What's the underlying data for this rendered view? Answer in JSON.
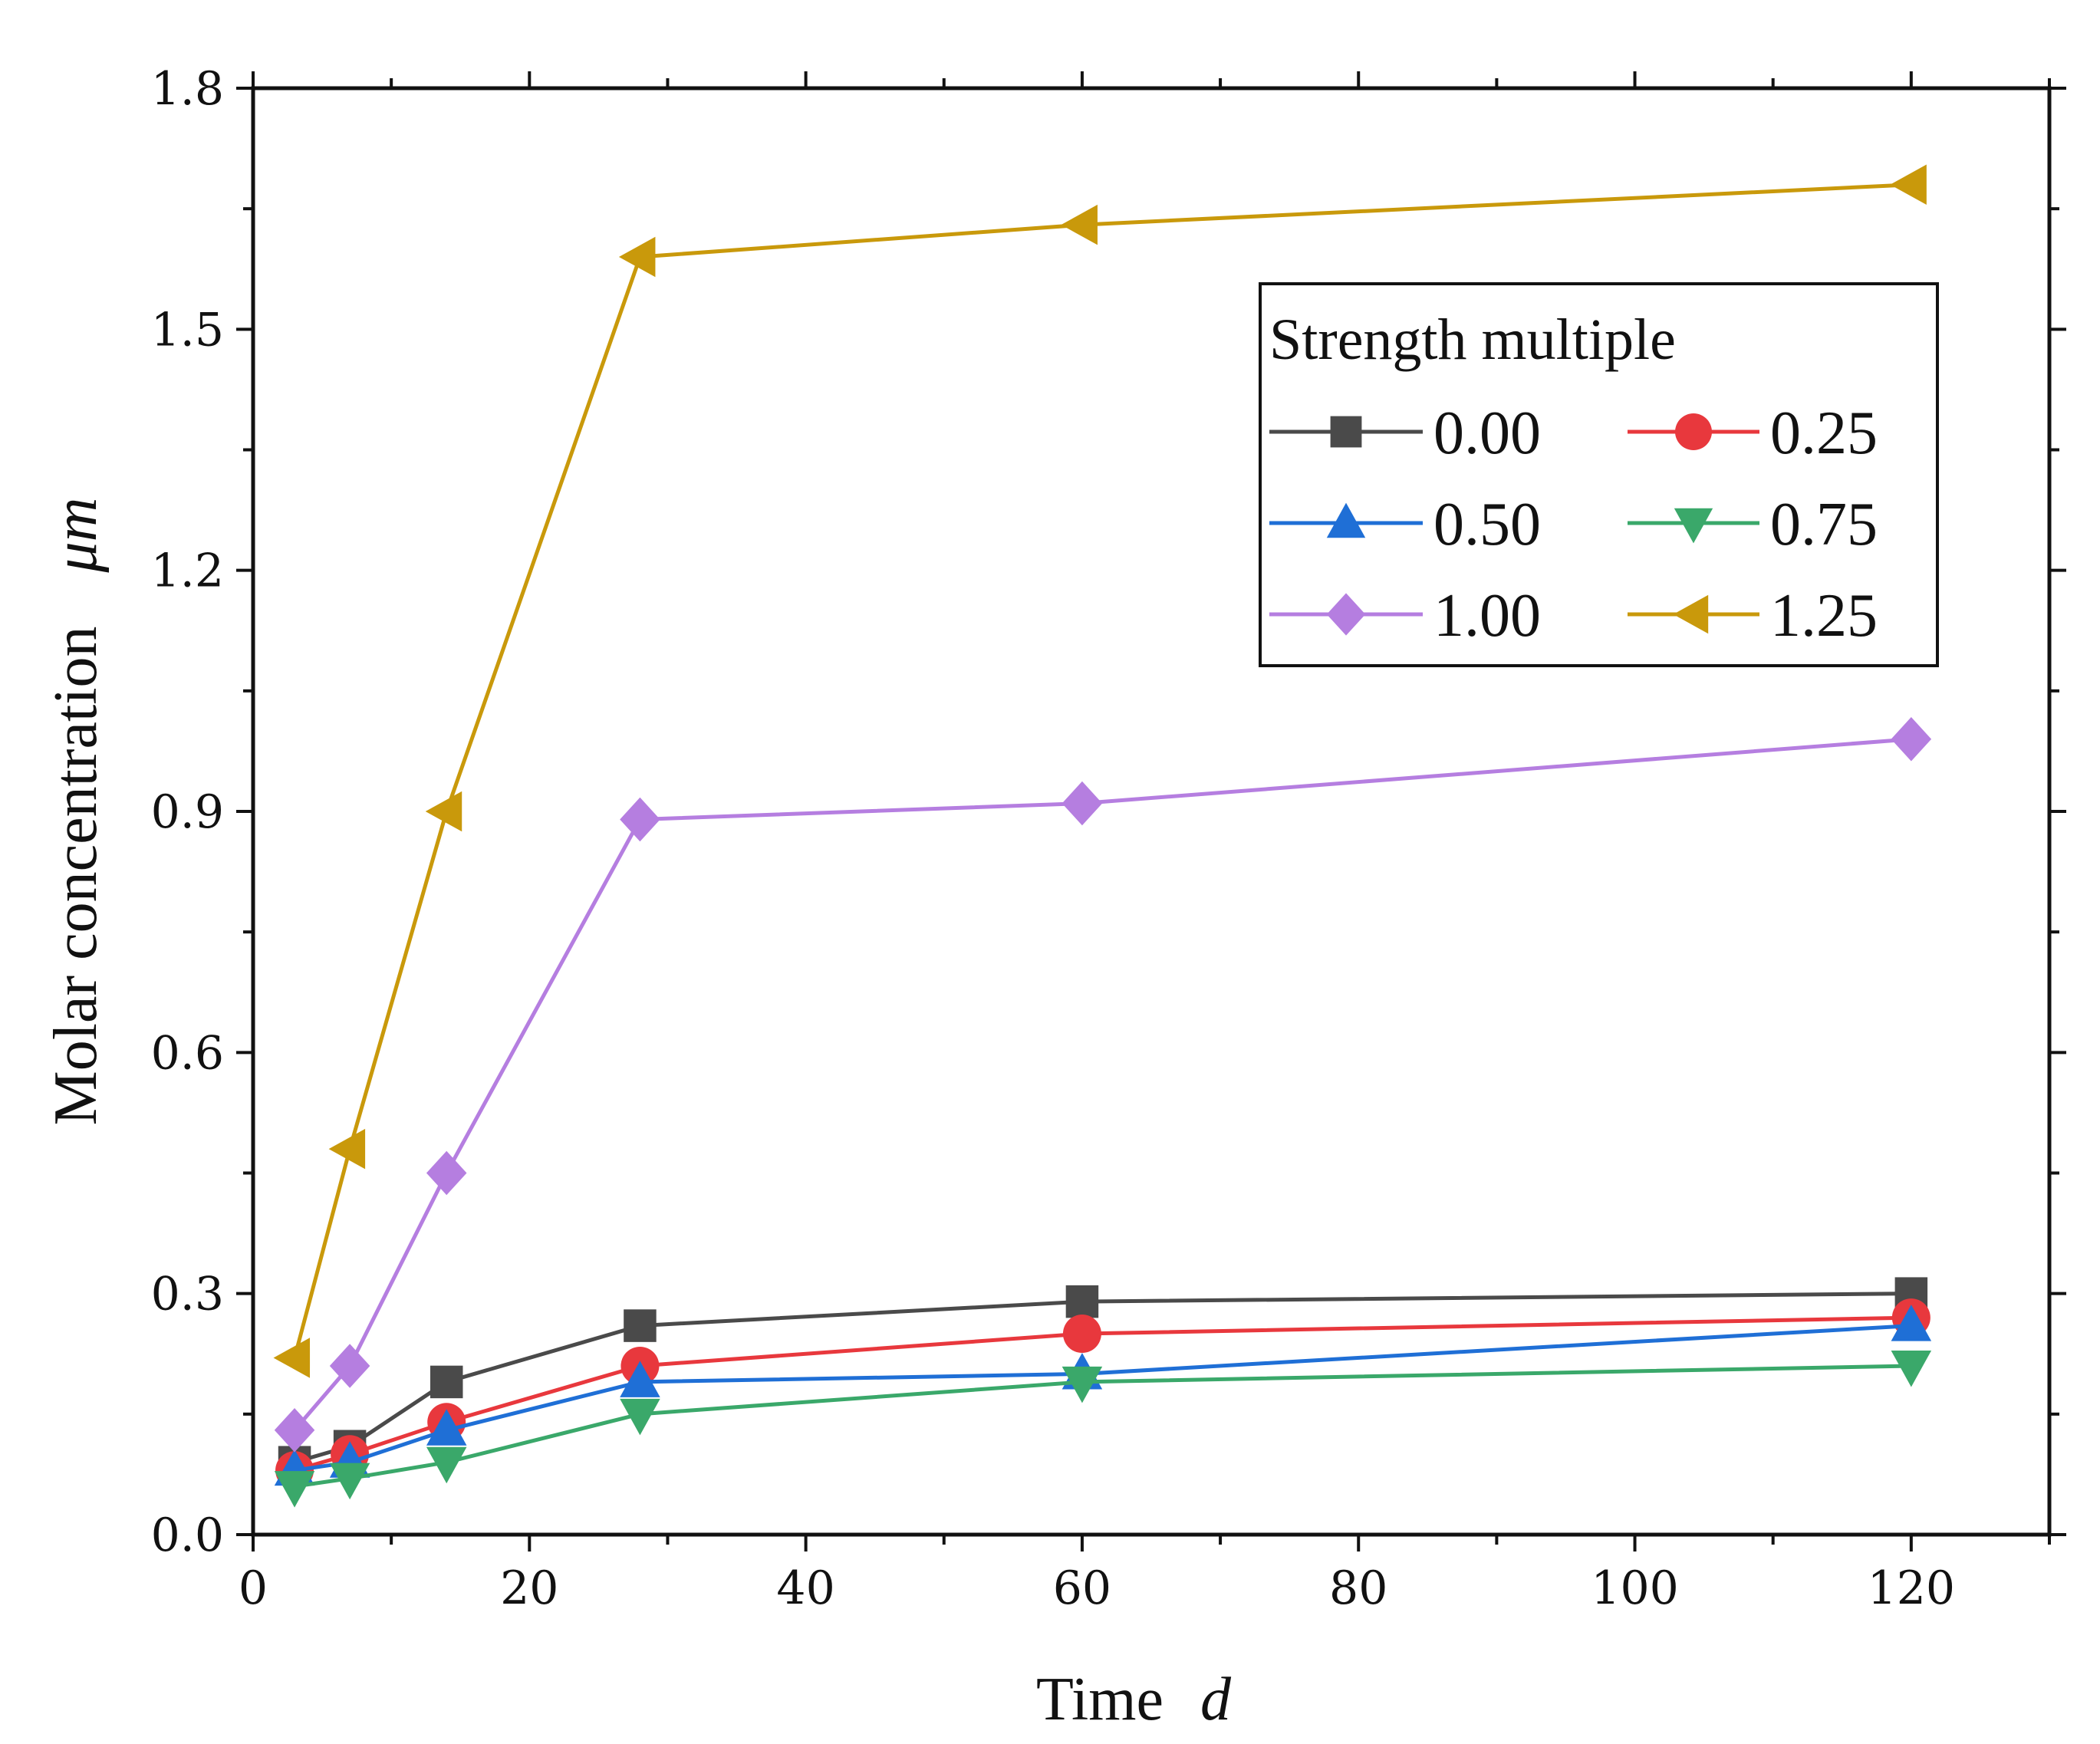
{
  "chart_data": {
    "type": "line",
    "title": "",
    "xlabel": "Time",
    "xlabel_unit": "d",
    "ylabel": "Molar concentration",
    "ylabel_unit": "μm",
    "xlim": [
      0,
      130
    ],
    "ylim": [
      0,
      1.8
    ],
    "x_ticks": [
      0,
      20,
      40,
      60,
      80,
      100,
      120
    ],
    "x_tick_labels": [
      "0",
      "20",
      "40",
      "60",
      "80",
      "100",
      "120"
    ],
    "y_ticks": [
      0,
      0.3,
      0.6,
      0.9,
      1.2,
      1.5,
      1.8
    ],
    "y_tick_labels": [
      "0.0",
      "0.3",
      "0.6",
      "0.9",
      "1.2",
      "1.5",
      "1.8"
    ],
    "grid": false,
    "legend_title": "Strength multiple",
    "legend_position": "top-right",
    "x": [
      3,
      7,
      14,
      28,
      60,
      120
    ],
    "series": [
      {
        "name": "0.00",
        "color": "#4a4a4a",
        "marker": "square",
        "values": [
          0.09,
          0.11,
          0.19,
          0.26,
          0.29,
          0.3
        ]
      },
      {
        "name": "0.25",
        "color": "#e8383d",
        "marker": "circle",
        "values": [
          0.08,
          0.1,
          0.14,
          0.21,
          0.25,
          0.27
        ]
      },
      {
        "name": "0.50",
        "color": "#1f6fd6",
        "marker": "triangle-up",
        "values": [
          0.08,
          0.09,
          0.13,
          0.19,
          0.2,
          0.26
        ]
      },
      {
        "name": "0.75",
        "color": "#3aa86a",
        "marker": "triangle-down",
        "values": [
          0.06,
          0.07,
          0.09,
          0.15,
          0.19,
          0.21
        ]
      },
      {
        "name": "1.00",
        "color": "#b57ee0",
        "marker": "diamond",
        "values": [
          0.13,
          0.21,
          0.45,
          0.89,
          0.91,
          0.99
        ]
      },
      {
        "name": "1.25",
        "color": "#c9990b",
        "marker": "triangle-left",
        "values": [
          0.22,
          0.48,
          0.9,
          1.59,
          1.63,
          1.68
        ]
      }
    ]
  }
}
